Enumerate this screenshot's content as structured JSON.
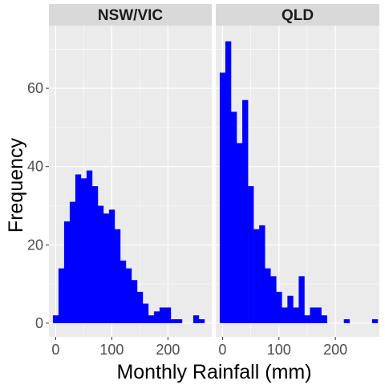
{
  "chart_data": {
    "type": "bar",
    "xlabel": "Monthly Rainfall (mm)",
    "ylabel": "Frequency",
    "xlim": [
      -12,
      278
    ],
    "ylim": [
      -3.5,
      76
    ],
    "xticks": [
      0,
      100,
      200
    ],
    "yticks": [
      0,
      20,
      40,
      60
    ],
    "xtick_labels": [
      "0",
      "100",
      "200"
    ],
    "ytick_labels": [
      "0",
      "20",
      "40",
      "60"
    ],
    "grid": true,
    "bin_width": 10,
    "bin_starts": [
      -5,
      5,
      15,
      25,
      35,
      45,
      55,
      65,
      75,
      85,
      95,
      105,
      115,
      125,
      135,
      145,
      155,
      165,
      175,
      185,
      195,
      205,
      215,
      225,
      235,
      245,
      255,
      265
    ],
    "facets": [
      {
        "name": "NSW/VIC",
        "values": [
          2,
          14,
          26,
          31,
          38,
          37,
          39,
          35,
          30,
          28,
          29,
          24,
          16,
          14,
          11,
          8,
          5,
          2,
          3,
          4,
          4,
          1,
          1,
          0,
          0,
          2,
          1,
          0
        ]
      },
      {
        "name": "QLD",
        "values": [
          64,
          72,
          54,
          46,
          57,
          35,
          24,
          25,
          14,
          12,
          8,
          4,
          7,
          4,
          12,
          2,
          4,
          4,
          2,
          0,
          0,
          0,
          1,
          0,
          0,
          0,
          0,
          1
        ]
      }
    ],
    "colors": {
      "bar": "#0000ff",
      "panel": "#ebebeb",
      "strip": "#d9d9d9",
      "grid": "#ffffff"
    }
  }
}
